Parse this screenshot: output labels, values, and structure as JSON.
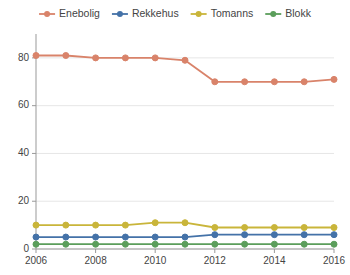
{
  "chart_data": {
    "type": "line",
    "x": [
      2006,
      2007,
      2008,
      2009,
      2010,
      2011,
      2012,
      2013,
      2014,
      2015,
      2016
    ],
    "series": [
      {
        "name": "Enebolig",
        "color": "#d9836a",
        "values": [
          81,
          81,
          80,
          80,
          80,
          79,
          70,
          70,
          70,
          70,
          71
        ]
      },
      {
        "name": "Rekkehus",
        "color": "#4472a8",
        "values": [
          5,
          5,
          5,
          5,
          5,
          5,
          6,
          6,
          6,
          6,
          6
        ]
      },
      {
        "name": "Tomanns",
        "color": "#c9b53a",
        "values": [
          10,
          10,
          10,
          10,
          11,
          11,
          9,
          9,
          9,
          9,
          9
        ]
      },
      {
        "name": "Blokk",
        "color": "#5b9e5b",
        "values": [
          2,
          2,
          2,
          2,
          2,
          2,
          2,
          2,
          2,
          2,
          2
        ]
      }
    ],
    "xlim": [
      2006,
      2016
    ],
    "xticks": [
      2006,
      2008,
      2010,
      2012,
      2014,
      2016
    ],
    "ylim": [
      0,
      90
    ],
    "yticks": [
      0,
      20,
      40,
      60,
      80
    ],
    "grid": true,
    "legend": "top",
    "marker": "circle"
  }
}
